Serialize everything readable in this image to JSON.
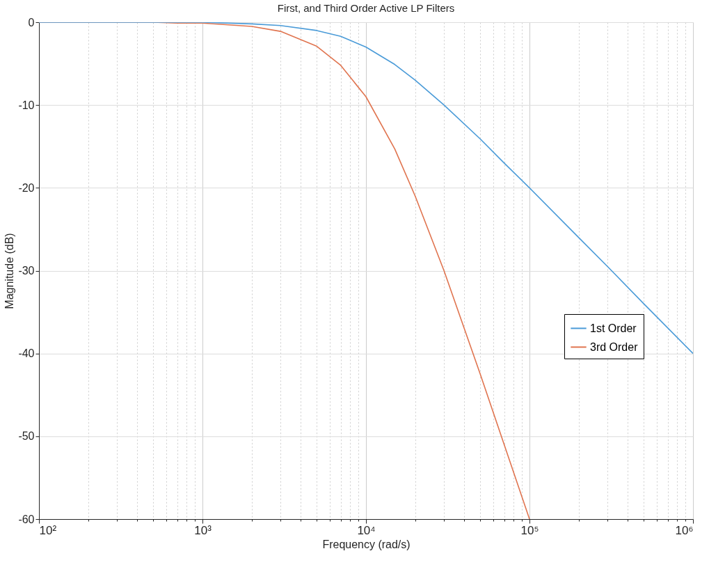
{
  "chart_data": {
    "type": "line",
    "title": "First, and Third Order Active LP Filters",
    "xlabel": "Frequency  (rad/s)",
    "ylabel": "Magnitude (dB)",
    "log": "x",
    "xlim": [
      100,
      1000000
    ],
    "ylim": [
      -60,
      0
    ],
    "xticks": [
      {
        "value": 100,
        "label": "10²"
      },
      {
        "value": 200,
        "label": null
      },
      {
        "value": 300,
        "label": null
      },
      {
        "value": 400,
        "label": null
      },
      {
        "value": 500,
        "label": null
      },
      {
        "value": 600,
        "label": null
      },
      {
        "value": 700,
        "label": null
      },
      {
        "value": 800,
        "label": null
      },
      {
        "value": 900,
        "label": null
      },
      {
        "value": 1000,
        "label": "10³"
      },
      {
        "value": 2000,
        "label": null
      },
      {
        "value": 3000,
        "label": null
      },
      {
        "value": 4000,
        "label": null
      },
      {
        "value": 5000,
        "label": null
      },
      {
        "value": 6000,
        "label": null
      },
      {
        "value": 7000,
        "label": null
      },
      {
        "value": 8000,
        "label": null
      },
      {
        "value": 9000,
        "label": null
      },
      {
        "value": 10000,
        "label": "10⁴"
      },
      {
        "value": 20000,
        "label": null
      },
      {
        "value": 30000,
        "label": null
      },
      {
        "value": 40000,
        "label": null
      },
      {
        "value": 50000,
        "label": null
      },
      {
        "value": 60000,
        "label": null
      },
      {
        "value": 70000,
        "label": null
      },
      {
        "value": 80000,
        "label": null
      },
      {
        "value": 90000,
        "label": null
      },
      {
        "value": 100000,
        "label": "10⁵"
      },
      {
        "value": 200000,
        "label": null
      },
      {
        "value": 300000,
        "label": null
      },
      {
        "value": 400000,
        "label": null
      },
      {
        "value": 500000,
        "label": null
      },
      {
        "value": 600000,
        "label": null
      },
      {
        "value": 700000,
        "label": null
      },
      {
        "value": 800000,
        "label": null
      },
      {
        "value": 900000,
        "label": null
      },
      {
        "value": 1000000,
        "label": "10⁶"
      }
    ],
    "yticks": [
      -60,
      -50,
      -40,
      -30,
      -20,
      -10,
      0
    ],
    "grid": true,
    "legend": "right",
    "line_style": "solid",
    "marker": "none",
    "series": [
      {
        "name": "1st Order",
        "color": "#4a9bd8",
        "x": [
          100,
          200,
          500,
          700,
          1000,
          2000,
          3000,
          5000,
          7000,
          10000,
          15000,
          20000,
          30000,
          50000,
          70000,
          100000,
          200000,
          300000,
          500000,
          1000000
        ],
        "values": [
          0,
          0,
          0,
          0,
          0,
          -0.2,
          -0.4,
          -1.0,
          -1.7,
          -3.0,
          -5.1,
          -7.0,
          -10.0,
          -14.1,
          -17.0,
          -20.0,
          -26.0,
          -29.5,
          -34.0,
          -40.0
        ]
      },
      {
        "name": "3rd Order",
        "color": "#e0744f",
        "x": [
          100,
          200,
          500,
          700,
          1000,
          2000,
          3000,
          5000,
          7000,
          10000,
          15000,
          20000,
          30000,
          50000,
          70000,
          100000
        ],
        "values": [
          0,
          0,
          0,
          -0.1,
          -0.1,
          -0.5,
          -1.1,
          -2.9,
          -5.2,
          -9.0,
          -15.3,
          -21.0,
          -30.0,
          -42.5,
          -51.0,
          -60.0
        ]
      }
    ]
  }
}
